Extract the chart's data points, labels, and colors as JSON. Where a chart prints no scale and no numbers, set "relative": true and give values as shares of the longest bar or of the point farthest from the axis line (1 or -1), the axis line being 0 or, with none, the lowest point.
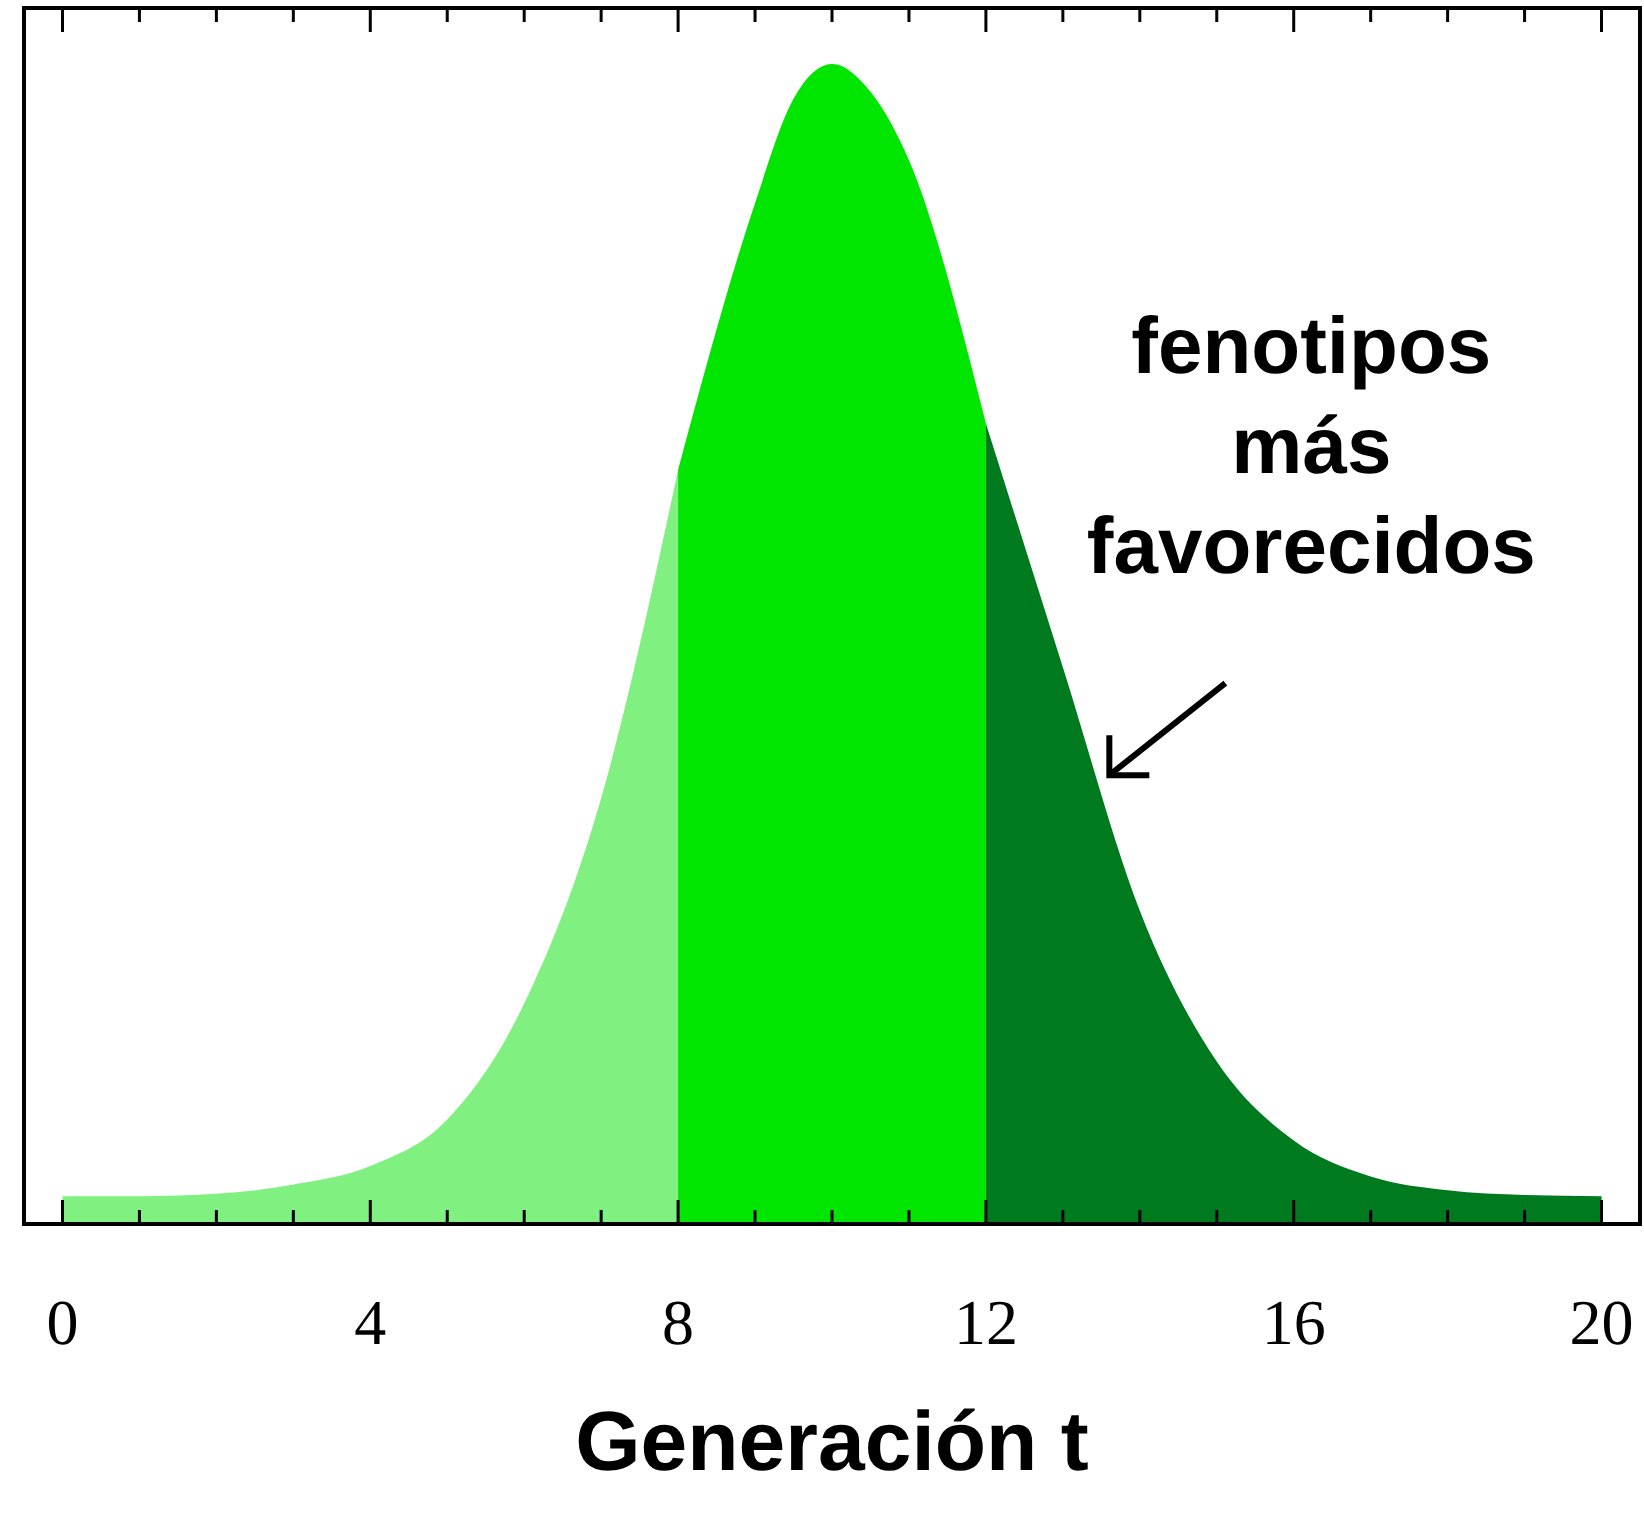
{
  "chart_data": {
    "type": "area",
    "relative": true,
    "xlabel": "Generación t",
    "xlim": [
      -0.5,
      20.5
    ],
    "xticks": [
      0,
      {
        "value": 1,
        "label": null
      },
      {
        "value": 2,
        "label": null
      },
      {
        "value": 3,
        "label": null
      },
      4,
      {
        "value": 5,
        "label": null
      },
      {
        "value": 6,
        "label": null
      },
      {
        "value": 7,
        "label": null
      },
      8,
      {
        "value": 9,
        "label": null
      },
      {
        "value": 10,
        "label": null
      },
      {
        "value": 11,
        "label": null
      },
      12,
      {
        "value": 13,
        "label": null
      },
      {
        "value": 14,
        "label": null
      },
      {
        "value": 15,
        "label": null
      },
      16,
      {
        "value": 17,
        "label": null
      },
      {
        "value": 18,
        "label": null
      },
      {
        "value": 19,
        "label": null
      },
      20
    ],
    "series": [
      {
        "color": "#80f080",
        "x": [
          0,
          1,
          2,
          3,
          4,
          5,
          6,
          7,
          8
        ],
        "values": [
          0.024,
          0.024,
          0.026,
          0.034,
          0.05,
          0.09,
          0.19,
          0.367,
          0.65
        ]
      },
      {
        "color": "#00e600",
        "x": [
          8,
          9,
          9.5,
          10,
          10.5,
          11,
          12
        ],
        "values": [
          0.65,
          0.88,
          0.97,
          1,
          0.976,
          0.917,
          0.69
        ]
      },
      {
        "color": "#007a1e",
        "x": [
          12,
          13,
          14,
          15,
          16,
          17,
          18,
          19,
          20
        ],
        "values": [
          0.69,
          0.48,
          0.27,
          0.14,
          0.072,
          0.041,
          0.029,
          0.025,
          0.024
        ]
      }
    ],
    "annotations": [
      {
        "text": "fenotipos\nmás\nfavorecidos",
        "x": 13.5,
        "y": 0.38
      }
    ],
    "grid": false
  }
}
